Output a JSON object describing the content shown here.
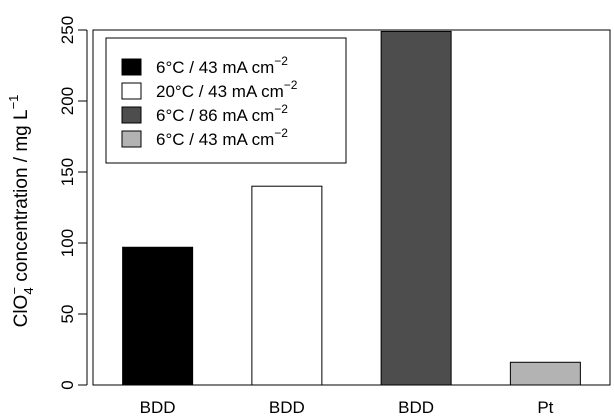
{
  "chart_data": {
    "type": "bar",
    "categories": [
      "BDD",
      "BDD",
      "BDD",
      "Pt"
    ],
    "values": [
      97,
      140,
      249,
      16
    ],
    "bar_colors": [
      "#000000",
      "#ffffff",
      "#4d4d4d",
      "#b3b3b3"
    ],
    "ylim": [
      0,
      250
    ],
    "yticks": [
      0,
      50,
      100,
      150,
      200,
      250
    ],
    "ylabel": {
      "parts": [
        "ClO",
        "4",
        "−",
        " concentration / mg L",
        "−1"
      ]
    },
    "legend": {
      "position": "top-left",
      "entries": [
        {
          "label": "6°C / 43 mA cm",
          "sup": "−2",
          "color": "#000000"
        },
        {
          "label": "20°C / 43 mA cm",
          "sup": "−2",
          "color": "#ffffff"
        },
        {
          "label": "6°C / 86 mA cm",
          "sup": "−2",
          "color": "#4d4d4d"
        },
        {
          "label": "6°C / 43 mA cm",
          "sup": "−2",
          "color": "#b3b3b3"
        }
      ]
    },
    "grid": false
  }
}
